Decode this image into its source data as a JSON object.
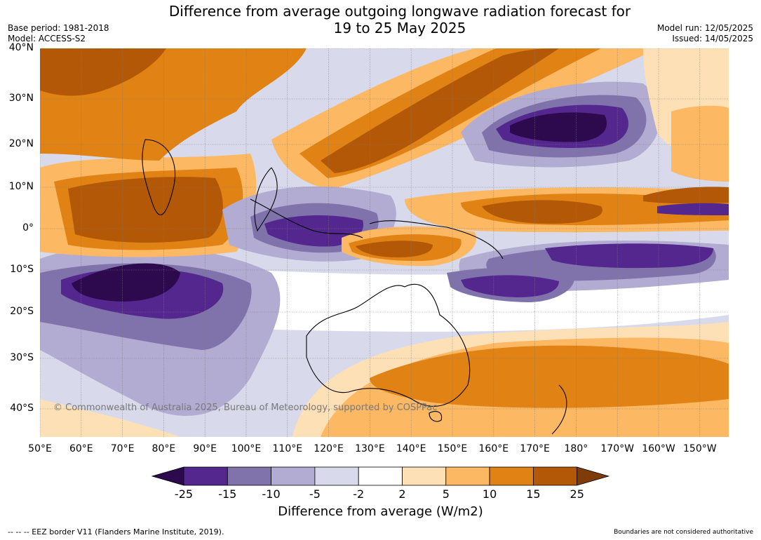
{
  "header": {
    "title_line1": "Difference from average outgoing longwave radiation forecast for",
    "title_line2": "19 to 25 May 2025",
    "base_period": "Base period: 1981-2018",
    "model": "Model: ACCESS-S2",
    "model_run": "Model run: 12/05/2025",
    "issued": "Issued: 14/05/2025"
  },
  "map": {
    "lat_labels": [
      "40°N",
      "30°N",
      "20°N",
      "10°N",
      "0°",
      "10°S",
      "20°S",
      "30°S",
      "40°S"
    ],
    "lon_labels": [
      "50°E",
      "60°E",
      "70°E",
      "80°E",
      "90°E",
      "100°E",
      "110°E",
      "120°E",
      "130°E",
      "140°E",
      "150°E",
      "160°E",
      "170°E",
      "180°",
      "170°W",
      "160°W",
      "150°W"
    ],
    "copyright": "© Commonwealth of Australia 2025, Bureau of Meteorology, supported by COSPPac"
  },
  "colorbar": {
    "ticks": [
      "-25",
      "-15",
      "-10",
      "-5",
      "-2",
      "2",
      "5",
      "10",
      "15",
      "25"
    ],
    "colors": [
      "#2d0a4e",
      "#54278f",
      "#8073ac",
      "#b2abd2",
      "#d8daeb",
      "#ffffff",
      "#fee0b6",
      "#fdb863",
      "#e08214",
      "#b35806",
      "#7f3b08"
    ],
    "label": "Difference from average (W/m2)"
  },
  "footer": {
    "eez_note": "--  --  -- EEZ border V11 (Flanders Marine Institute, 2019).",
    "boundaries_note": "Boundaries are not considered authoritative"
  }
}
